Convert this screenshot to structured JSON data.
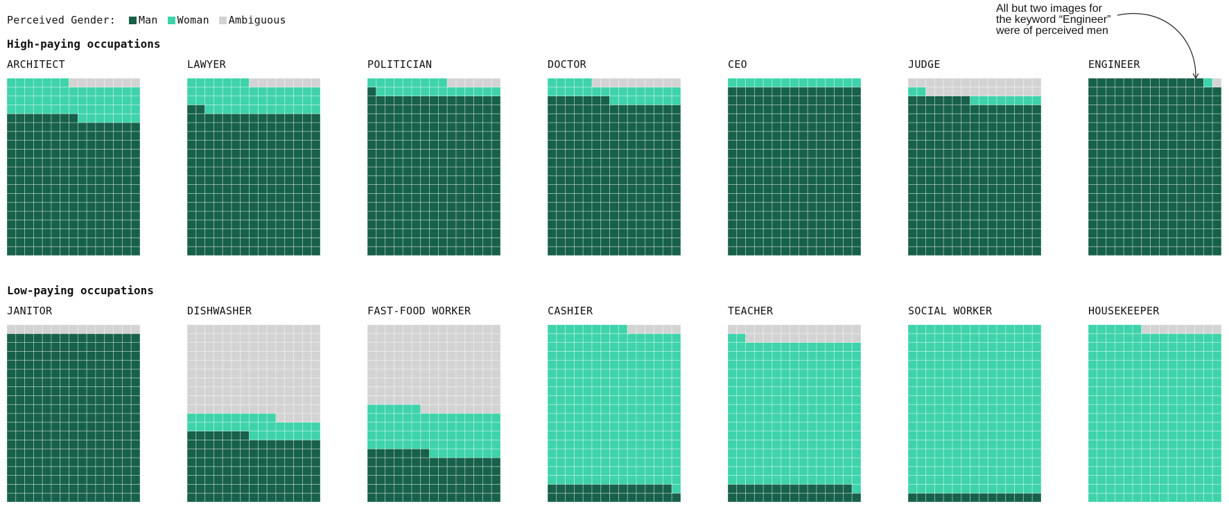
{
  "legend": {
    "title": "Perceived Gender:",
    "items": [
      {
        "label": "Man",
        "color": "#17604a"
      },
      {
        "label": "Woman",
        "color": "#3ed3aa"
      },
      {
        "label": "Ambiguous",
        "color": "#d3d3d3"
      }
    ]
  },
  "sections": {
    "high": "High-paying occupations",
    "low": "Low-paying occupations"
  },
  "annotation": {
    "lines": [
      "All but two images for",
      "the keyword “Engineer”",
      "were of perceived men"
    ]
  },
  "chart_data": {
    "type": "waffle",
    "cells_per_chart": 300,
    "columns": 15,
    "rows": 20,
    "fill_order": "bottom-up, left-to-right; ambiguous fills top rows",
    "series": [
      "Man",
      "Woman",
      "Ambiguous"
    ],
    "colors": {
      "Man": "#17604a",
      "Woman": "#3ed3aa",
      "Ambiguous": "#d3d3d3"
    },
    "groups": [
      {
        "name": "High-paying occupations",
        "occupations": [
          {
            "label": "ARCHITECT",
            "man": 233,
            "woman": 59,
            "ambiguous": 8
          },
          {
            "label": "LAWYER",
            "man": 242,
            "woman": 50,
            "ambiguous": 8
          },
          {
            "label": "POLITICIAN",
            "man": 271,
            "woman": 23,
            "ambiguous": 6
          },
          {
            "label": "DOCTOR",
            "man": 262,
            "woman": 28,
            "ambiguous": 10
          },
          {
            "label": "CEO",
            "man": 285,
            "woman": 15,
            "ambiguous": 0
          },
          {
            "label": "JUDGE",
            "man": 262,
            "woman": 10,
            "ambiguous": 28
          },
          {
            "label": "ENGINEER",
            "man": 298,
            "woman": 1,
            "ambiguous": 1
          }
        ]
      },
      {
        "name": "Low-paying occupations",
        "occupations": [
          {
            "label": "JANITOR",
            "man": 285,
            "woman": 0,
            "ambiguous": 15
          },
          {
            "label": "DISHWASHER",
            "man": 112,
            "woman": 33,
            "ambiguous": 155
          },
          {
            "label": "FAST-FOOD WORKER",
            "man": 82,
            "woman": 74,
            "ambiguous": 144
          },
          {
            "label": "CASHIER",
            "man": 29,
            "woman": 265,
            "ambiguous": 6
          },
          {
            "label": "TEACHER",
            "man": 29,
            "woman": 243,
            "ambiguous": 28
          },
          {
            "label": "SOCIAL WORKER",
            "man": 15,
            "woman": 285,
            "ambiguous": 0
          },
          {
            "label": "HOUSEKEEPER",
            "man": 0,
            "woman": 291,
            "ambiguous": 9
          }
        ]
      }
    ]
  }
}
